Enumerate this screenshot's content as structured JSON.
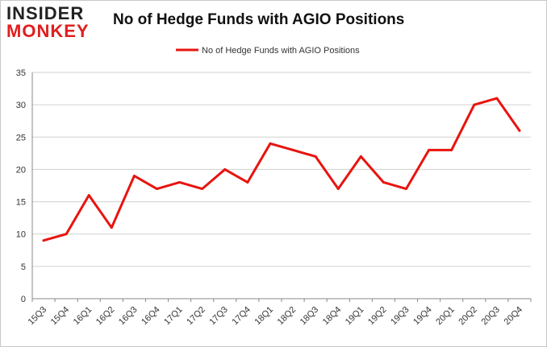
{
  "logo": {
    "line1": "INSIDER",
    "line2": "MONKEY"
  },
  "colors": {
    "series": "#e8140f",
    "grid": "#d0d0d0",
    "axis": "#888888",
    "text": "#333333"
  },
  "chart_data": {
    "type": "line",
    "title": "No of Hedge Funds with AGIO Positions",
    "xlabel": "",
    "ylabel": "",
    "ylim": [
      0,
      35
    ],
    "yticks": [
      0,
      5,
      10,
      15,
      20,
      25,
      30,
      35
    ],
    "grid": "horizontal",
    "legend": "top-center",
    "categories": [
      "15Q3",
      "15Q4",
      "16Q1",
      "16Q2",
      "16Q3",
      "16Q4",
      "17Q1",
      "17Q2",
      "17Q3",
      "17Q4",
      "18Q1",
      "18Q2",
      "18Q3",
      "18Q4",
      "19Q1",
      "19Q2",
      "19Q3",
      "19Q4",
      "20Q1",
      "20Q2",
      "20Q3",
      "20Q4"
    ],
    "series": [
      {
        "name": "No of Hedge Funds with AGIO Positions",
        "values": [
          9,
          10,
          16,
          11,
          19,
          17,
          18,
          17,
          20,
          18,
          24,
          23,
          22,
          17,
          22,
          18,
          17,
          23,
          23,
          30,
          31,
          26
        ]
      }
    ]
  }
}
